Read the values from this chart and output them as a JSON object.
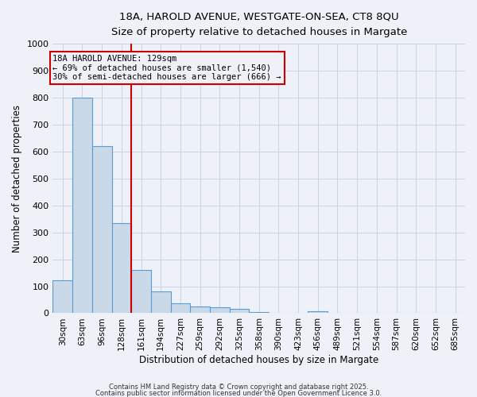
{
  "title1": "18A, HAROLD AVENUE, WESTGATE-ON-SEA, CT8 8QU",
  "title2": "Size of property relative to detached houses in Margate",
  "xlabel": "Distribution of detached houses by size in Margate",
  "ylabel": "Number of detached properties",
  "categories": [
    "30sqm",
    "63sqm",
    "96sqm",
    "128sqm",
    "161sqm",
    "194sqm",
    "227sqm",
    "259sqm",
    "292sqm",
    "325sqm",
    "358sqm",
    "390sqm",
    "423sqm",
    "456sqm",
    "489sqm",
    "521sqm",
    "554sqm",
    "587sqm",
    "620sqm",
    "652sqm",
    "685sqm"
  ],
  "values": [
    122,
    800,
    620,
    335,
    160,
    80,
    38,
    25,
    22,
    15,
    5,
    0,
    0,
    8,
    0,
    0,
    0,
    0,
    0,
    0,
    0
  ],
  "bar_color": "#c9d9e8",
  "bar_edge_color": "#5b9bd5",
  "grid_color": "#c8d4e8",
  "background_color": "#eef2f8",
  "red_line_x": 3.5,
  "red_line_color": "#cc0000",
  "annotation_text": "18A HAROLD AVENUE: 129sqm\n← 69% of detached houses are smaller (1,540)\n30% of semi-detached houses are larger (666) →",
  "ylim": [
    0,
    1000
  ],
  "yticks": [
    0,
    100,
    200,
    300,
    400,
    500,
    600,
    700,
    800,
    900,
    1000
  ],
  "footer1": "Contains HM Land Registry data © Crown copyright and database right 2025.",
  "footer2": "Contains public sector information licensed under the Open Government Licence 3.0."
}
